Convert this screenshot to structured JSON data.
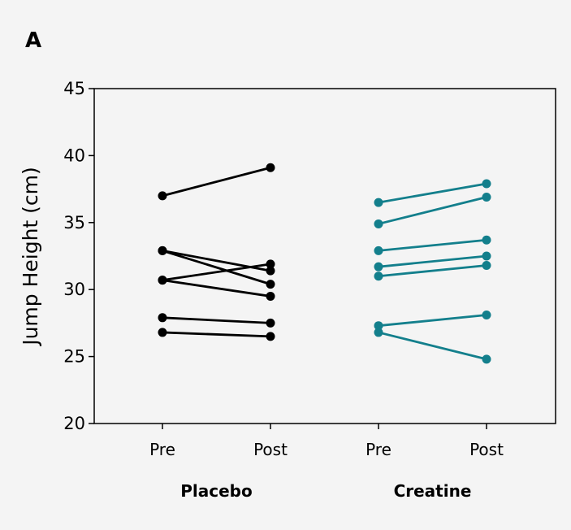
{
  "panel_label": "A",
  "chart_data": {
    "type": "line",
    "title": "",
    "ylabel": "Jump Height (cm)",
    "ylim": [
      20,
      45
    ],
    "yticks": [
      20,
      25,
      30,
      35,
      40,
      45
    ],
    "grid": false,
    "x_tick_labels": [
      "Pre",
      "Post",
      "Pre",
      "Post"
    ],
    "groups": [
      {
        "name": "Placebo",
        "color": "#000000",
        "subjects": [
          {
            "pre": 37.0,
            "post": 39.1
          },
          {
            "pre": 32.9,
            "post": 30.4
          },
          {
            "pre": 32.9,
            "post": 31.4
          },
          {
            "pre": 30.7,
            "post": 31.9
          },
          {
            "pre": 30.7,
            "post": 29.5
          },
          {
            "pre": 27.9,
            "post": 27.5
          },
          {
            "pre": 26.8,
            "post": 26.5
          }
        ]
      },
      {
        "name": "Creatine",
        "color": "#137f8c",
        "subjects": [
          {
            "pre": 36.5,
            "post": 37.9
          },
          {
            "pre": 34.9,
            "post": 36.9
          },
          {
            "pre": 32.9,
            "post": 33.7
          },
          {
            "pre": 31.7,
            "post": 32.5
          },
          {
            "pre": 31.0,
            "post": 31.8
          },
          {
            "pre": 27.3,
            "post": 28.1
          },
          {
            "pre": 26.8,
            "post": 24.8
          }
        ]
      }
    ]
  }
}
